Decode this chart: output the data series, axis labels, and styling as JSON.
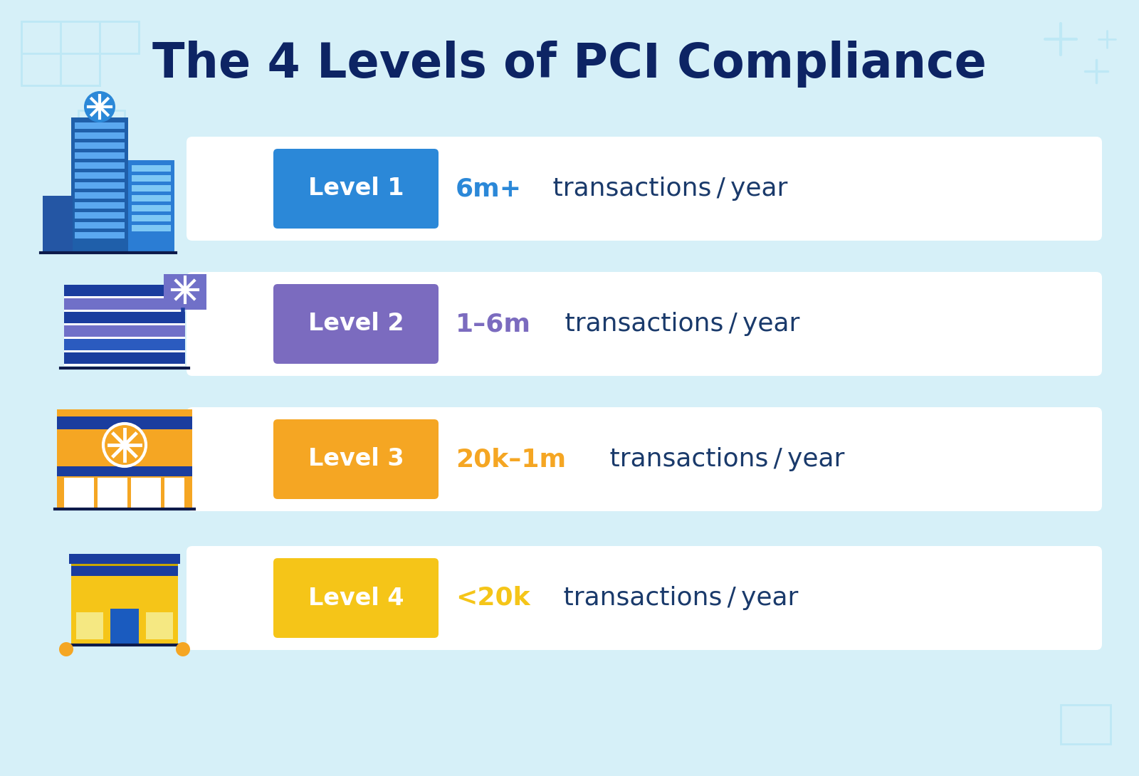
{
  "title": "The 4 Levels of PCI Compliance",
  "title_color": "#0d2464",
  "title_fontsize": 48,
  "background_color": "#d6f0f8",
  "row_bg_color": "#ffffff",
  "levels": [
    {
      "label": "Level 1",
      "badge_color": "#2b88d8",
      "text_highlight": "6m+",
      "text_rest": " transactions / year",
      "text_color": "#2b88d8",
      "text_rest_color": "#1a3a6b"
    },
    {
      "label": "Level 2",
      "badge_color": "#7b6bbf",
      "text_highlight": "1–6m",
      "text_rest": " transactions / year",
      "text_color": "#7b6bbf",
      "text_rest_color": "#1a3a6b"
    },
    {
      "label": "Level 3",
      "badge_color": "#f5a623",
      "text_highlight": "20k–1m",
      "text_rest": " transactions / year",
      "text_color": "#f5a623",
      "text_rest_color": "#1a3a6b"
    },
    {
      "label": "Level 4",
      "badge_color": "#f5c518",
      "text_highlight": "<20k",
      "text_rest": " transactions / year",
      "text_color": "#f5c518",
      "text_rest_color": "#1a3a6b"
    }
  ]
}
